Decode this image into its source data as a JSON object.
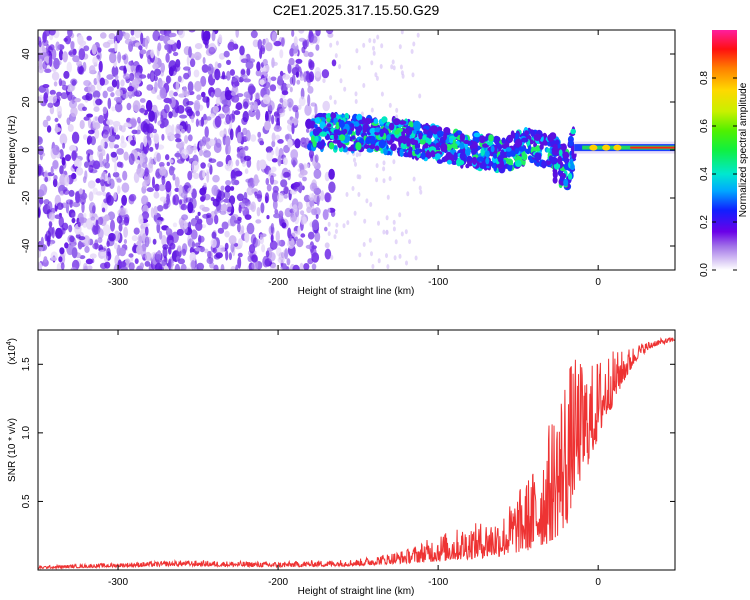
{
  "title": "C2E1.2025.317.15.50.G29",
  "chart_data": [
    {
      "type": "heatmap",
      "name": "spectrogram",
      "xlabel": "Height of straight line (km)",
      "ylabel": "Frequency (Hz)",
      "xlim": [
        -350,
        48
      ],
      "ylim": [
        -50,
        50
      ],
      "xticks": [
        -300,
        -200,
        -100,
        0
      ],
      "yticks": [
        -40,
        -20,
        0,
        20,
        40
      ],
      "colorbar": {
        "label": "Normalized spectral amplitude",
        "range": [
          0,
          1
        ],
        "ticks": [
          "0.0",
          "0.2",
          "0.4",
          "0.6",
          "0.8"
        ]
      },
      "signal_track": [
        {
          "x": -180,
          "y": 8
        },
        {
          "x": -150,
          "y": 7
        },
        {
          "x": -120,
          "y": 5
        },
        {
          "x": -100,
          "y": 2
        },
        {
          "x": -80,
          "y": 0
        },
        {
          "x": -60,
          "y": -2
        },
        {
          "x": -45,
          "y": 2
        },
        {
          "x": -30,
          "y": -2
        },
        {
          "x": -20,
          "y": -8
        },
        {
          "x": -15,
          "y": 1
        },
        {
          "x": 0,
          "y": 1
        },
        {
          "x": 20,
          "y": 1
        },
        {
          "x": 48,
          "y": 1
        }
      ]
    },
    {
      "type": "line",
      "name": "snr",
      "xlabel": "Height of straight line (km)",
      "ylabel": "SNR (10 * v/v)",
      "yscale_label": "(x10",
      "yscale_exp": "4",
      "xlim": [
        -350,
        48
      ],
      "ylim": [
        0,
        1.75
      ],
      "xticks": [
        -300,
        -200,
        -100,
        0
      ],
      "yticks": [
        "0.5",
        "1.0",
        "1.5"
      ],
      "color": "#ee3333",
      "envelope": [
        {
          "x": -350,
          "base": 0.01,
          "spread": 0.02
        },
        {
          "x": -260,
          "base": 0.03,
          "spread": 0.04
        },
        {
          "x": -200,
          "base": 0.02,
          "spread": 0.04
        },
        {
          "x": -150,
          "base": 0.03,
          "spread": 0.05
        },
        {
          "x": -120,
          "base": 0.05,
          "spread": 0.1
        },
        {
          "x": -100,
          "base": 0.06,
          "spread": 0.2
        },
        {
          "x": -80,
          "base": 0.08,
          "spread": 0.25
        },
        {
          "x": -60,
          "base": 0.1,
          "spread": 0.3
        },
        {
          "x": -40,
          "base": 0.15,
          "spread": 0.6
        },
        {
          "x": -30,
          "base": 0.2,
          "spread": 0.9
        },
        {
          "x": -20,
          "base": 0.3,
          "spread": 1.2
        },
        {
          "x": -15,
          "base": 0.55,
          "spread": 1.0
        },
        {
          "x": -5,
          "base": 0.8,
          "spread": 0.7
        },
        {
          "x": 5,
          "base": 1.1,
          "spread": 0.5
        },
        {
          "x": 15,
          "base": 1.35,
          "spread": 0.25
        },
        {
          "x": 25,
          "base": 1.55,
          "spread": 0.1
        },
        {
          "x": 35,
          "base": 1.63,
          "spread": 0.05
        },
        {
          "x": 48,
          "base": 1.67,
          "spread": 0.03
        }
      ]
    }
  ]
}
